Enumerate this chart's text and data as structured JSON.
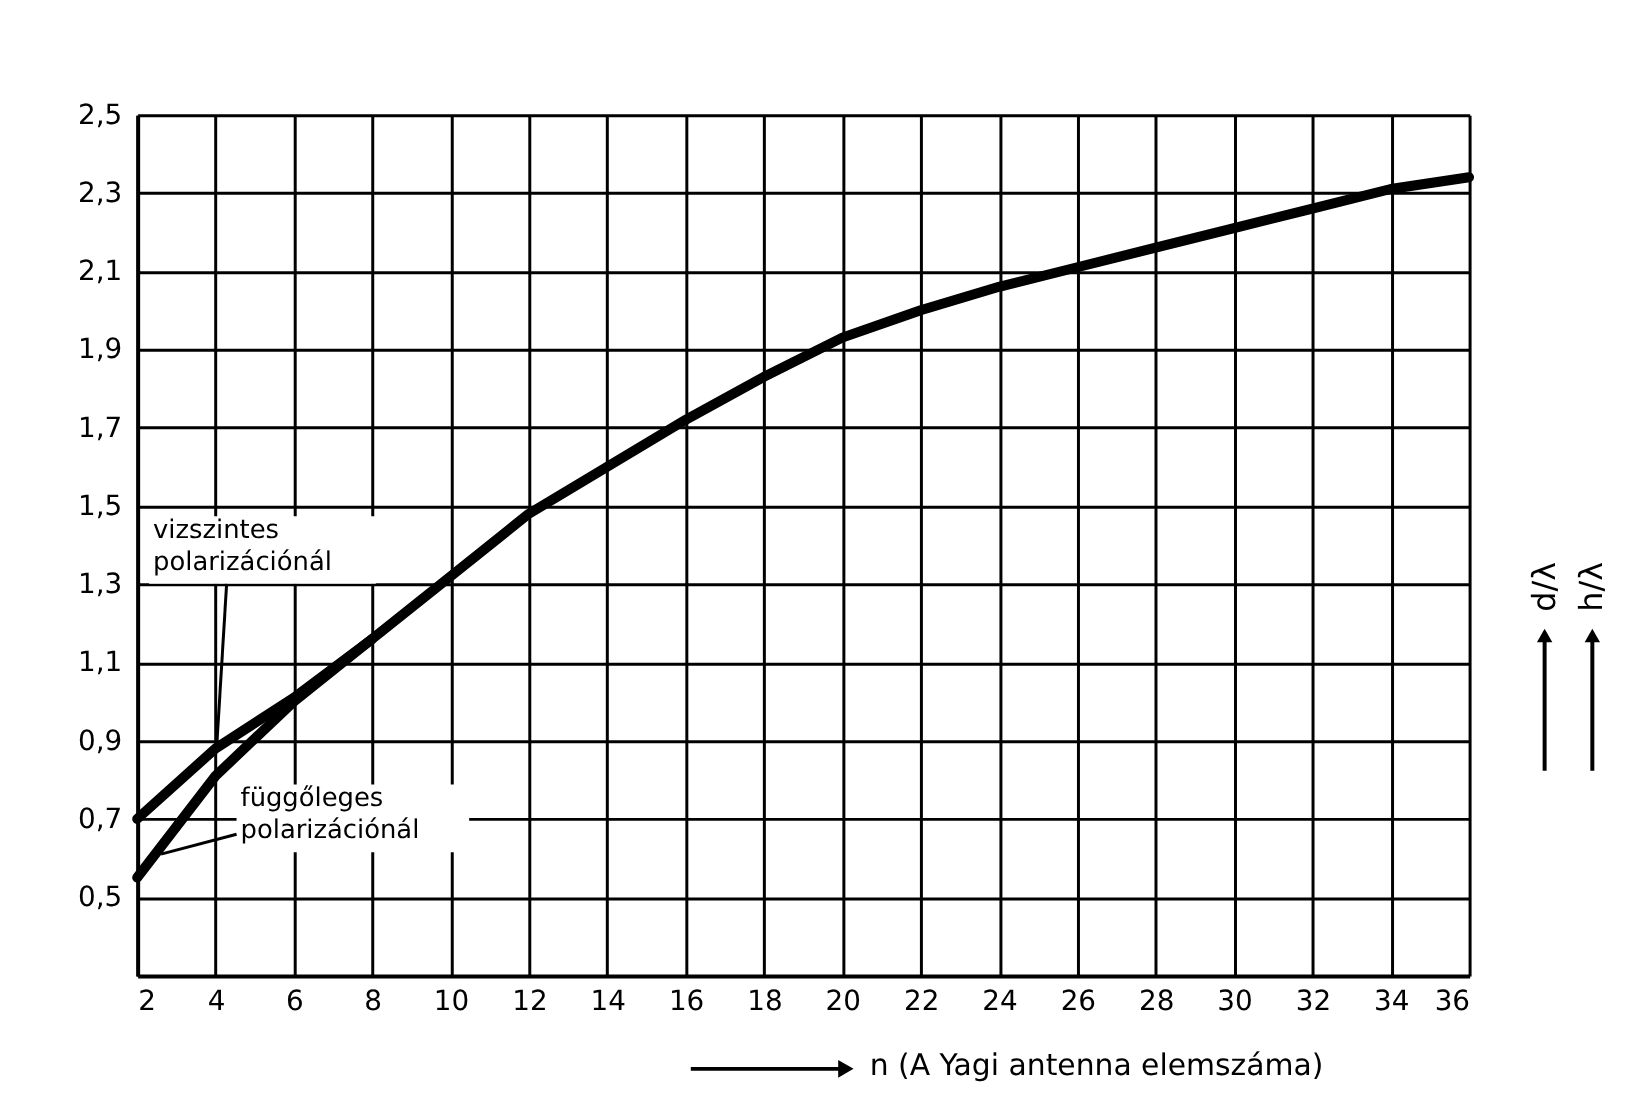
{
  "chart_data": {
    "type": "line",
    "xlabel": "n (A Yagi antenna elemszáma)",
    "annotations": [
      "d/λ",
      "h/λ"
    ],
    "series": [
      {
        "name": "vizszintes polarizációnál",
        "color": "#000000",
        "x": [
          2,
          4,
          6,
          8,
          10,
          12,
          14,
          16,
          18,
          20,
          22,
          24,
          26,
          28,
          30,
          32,
          34,
          36
        ],
        "values": [
          0.7,
          0.88,
          1.01,
          1.16,
          1.32,
          1.48,
          1.6,
          1.72,
          1.83,
          1.93,
          2.0,
          2.06,
          2.11,
          2.16,
          2.21,
          2.26,
          2.31,
          2.34
        ]
      },
      {
        "name": "függőleges polarizációnál",
        "color": "#000000",
        "x": [
          2,
          4,
          6,
          8
        ],
        "values": [
          0.55,
          0.81,
          1.0,
          1.16
        ]
      }
    ],
    "xlim": [
      2,
      36
    ],
    "xticks": [
      2,
      4,
      6,
      8,
      10,
      12,
      14,
      16,
      18,
      20,
      22,
      24,
      26,
      28,
      30,
      32,
      34,
      36
    ],
    "ylim": [
      0.3,
      2.5
    ],
    "yticks": [
      {
        "value": 0.5,
        "label": "0,5"
      },
      {
        "value": 0.7,
        "label": "0,7"
      },
      {
        "value": 0.9,
        "label": "0,9"
      },
      {
        "value": 1.1,
        "label": "1,1"
      },
      {
        "value": 1.3,
        "label": "1,3"
      },
      {
        "value": 1.5,
        "label": "1,5"
      },
      {
        "value": 1.7,
        "label": "1,7"
      },
      {
        "value": 1.9,
        "label": "1,9"
      },
      {
        "value": 2.1,
        "label": "2,1"
      },
      {
        "value": 2.3,
        "label": "2,3"
      },
      {
        "value": 2.5,
        "label": "2,5"
      }
    ],
    "grid": true,
    "marker": "none",
    "line_style": "solid"
  }
}
